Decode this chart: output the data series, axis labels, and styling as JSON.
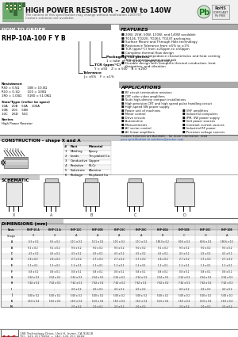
{
  "title": "HIGH POWER RESISTOR – 20W to 140W",
  "subtitle1": "The content of this specification may change without notification 12/07/07",
  "subtitle2": "Custom solutions are available.",
  "how_to_order_title": "HOW TO ORDER",
  "part_number": "RHP-10A-100 F Y B",
  "packaging_label": "Packaging (50 pieces)",
  "packaging_desc": "1 = tube  or  50 = tray (flanged type only)",
  "tcr_label": "TCR (ppm/°C)",
  "tcr_desc": "Y = ±50    Z = ± 500    N = ±250",
  "tol_label": "Tolerance",
  "tol_desc": "J = ±5%    F = ±1%",
  "res_label": "Resistance",
  "res_lines": [
    "R50 = 0.5Ω        10B = 10.0Ω",
    "R10 = 0.1Ω        100 = 100Ω",
    "1R0 = 1.00Ω      51K0 = 51.0KΩ"
  ],
  "size_label": "Size/Type (refer to spec)",
  "size_lines": [
    "10A    20B    50A    100A",
    "10B    20C    50B",
    "10C    26D    50C"
  ],
  "series_label": "Series",
  "series_desc": "High Power Resistor",
  "features_title": "FEATURES",
  "features": [
    "20W, 25W, 50W, 100W, and 140W available",
    "TO126, TO220, TO263, TO247 packaging",
    "Surface Mount and Through Hole technology",
    "Resistance Tolerance from ±5% to ±1%",
    "TCR (ppm/°C) from ±25ppm to ±50ppm",
    "Complete thermal flow design",
    "Non Inductive impedance characteristics and heat venting\n    through the insulated metal tab",
    "Durable design with complete thermal conduction, heat\n    dissipation, and vibration"
  ],
  "applications_title": "APPLICATIONS",
  "applications_col1": [
    "RF circuit termination resistors",
    "CRT color video amplifiers",
    "Suits high-density compact installations",
    "High precision CRT and high speed pulse handling circuit",
    "High speed SW power supply",
    "Power unit of machines",
    "Motor control",
    "Drive circuits",
    "Automotive",
    "Measurements",
    "AC sector control",
    "AC linear amplifiers"
  ],
  "applications_col2": [
    "VHF amplifiers",
    "Industrial computers",
    "IPM, SW power supply",
    "Volt power sources",
    "Constant current sources",
    "Industrial RF power",
    "Precision voltage sources"
  ],
  "custom_line1": "Custom Solutions are Available – for more information, send",
  "custom_line2": "your specification to solutions@aactec.com",
  "construction_title": "CONSTRUCTION – shape X and A",
  "construction_items": [
    [
      "1",
      "Molding",
      "Epoxy"
    ],
    [
      "2",
      "Leads",
      "Tin-plated Cu"
    ],
    [
      "3",
      "Conductive",
      "Copper"
    ],
    [
      "4",
      "Resistive",
      "Ni-Cr"
    ],
    [
      "5",
      "Substrate",
      "Alumina"
    ],
    [
      "6",
      "Package",
      "Ni-plated Cu"
    ]
  ],
  "schematic_title": "SCHEMATIC",
  "dimensions_title": "DIMENSIONS (mm)",
  "dim_col_headers": [
    "Resis",
    "RHP-10 A",
    "RHP-11 A",
    "RHP-12C",
    "RHP-20B",
    "RHP-25C",
    "RHP-26C",
    "RHP-40A",
    "RHP-50B",
    "RHP-10C",
    "RHP-10B"
  ],
  "dim_shape_row": [
    "Shape",
    "X",
    "X",
    "A",
    "A",
    "A",
    "A",
    "B",
    "C",
    "D",
    "A"
  ],
  "dim_rows": [
    [
      "A",
      "6.5 ± 0.2",
      "6.5 ± 0.2",
      "10.1 ± 0.2",
      "10.1 ± 0.2",
      "10.5 ± 0.2",
      "10.1 ± 0.2",
      "160.0 ± 0.2",
      "60.6 ± 0.2",
      "60.6 ± 0.2",
      "160.6 ± 0.2"
    ],
    [
      "B",
      "9.1 ± 0.2",
      "9.1 ± 0.2",
      "9.0 ± 0.2",
      "9.0 ± 0.2",
      "9.0 ± 0.2",
      "9.0 ± 0.2",
      "9.1 ± 0.2",
      "9.0 ± 0.2",
      "9.0 ± 0.2",
      "9.0 ± 0.2"
    ],
    [
      "C",
      "4.5 ± 0.2",
      "4.5 ± 0.2",
      "4.5 ± 0.2",
      "4.5 ± 0.2",
      "4.5 ± 0.2",
      "4.5 ± 0.2",
      "4.5 ± 0.2",
      "4.5 ± 0.2",
      "4.5 ± 0.2",
      "4.5 ± 0.2"
    ],
    [
      "D",
      "2.6 ± 0.2",
      "2.6 ± 0.2",
      "2.7 ± 0.2",
      "2.7 ± 0.2",
      "2.7 ± 0.2",
      "2.7 ± 0.2",
      "2.6 ± 0.2",
      "2.7 ± 0.2",
      "2.7 ± 0.2",
      "2.7 ± 0.2"
    ],
    [
      "E",
      "1.3 ± 0.1",
      "1.3 ± 0.1",
      "1.3 ± 0.1",
      "1.3 ± 0.1",
      "1.3 ± 0.1",
      "1.3 ± 0.1",
      "1.3 ± 0.1",
      "1.3 ± 0.1",
      "1.3 ± 0.1",
      "1.3 ± 0.1"
    ],
    [
      "F",
      "0.8 ± 0.1",
      "0.8 ± 0.1",
      "0.8 ± 0.1",
      "0.8 ± 0.1",
      "0.8 ± 0.1",
      "0.8 ± 0.1",
      "0.8 ± 0.1",
      "0.8 ± 0.1",
      "0.8 ± 0.1",
      "0.8 ± 0.1"
    ],
    [
      "G",
      "2.54 ± 0.2",
      "2.54 ± 0.2",
      "2.54 ± 0.2",
      "2.54 ± 0.2",
      "2.54 ± 0.2",
      "2.54 ± 0.2",
      "2.54 ± 0.2",
      "2.54 ± 0.2",
      "2.54 ± 0.2",
      "2.54 ± 0.2"
    ],
    [
      "H",
      "7.62 ± 0.2",
      "7.62 ± 0.2",
      "7.62 ± 0.2",
      "7.62 ± 0.2",
      "7.62 ± 0.2",
      "7.62 ± 0.2",
      "7.62 ± 0.2",
      "7.62 ± 0.2",
      "7.62 ± 0.2",
      "7.62 ± 0.2"
    ],
    [
      "I",
      "–",
      "–",
      "4.0 ± 0.2",
      "4.0 ± 0.2",
      "4.0 ± 0.2",
      "4.0 ± 0.2",
      "–",
      "4.0 ± 0.2",
      "4.0 ± 0.2",
      "4.0 ± 0.2"
    ],
    [
      "J",
      "5.08 ± 0.2",
      "5.08 ± 0.2",
      "5.08 ± 0.2",
      "5.08 ± 0.2",
      "5.08 ± 0.2",
      "5.08 ± 0.2",
      "5.08 ± 0.2",
      "5.08 ± 0.2",
      "5.08 ± 0.2",
      "5.08 ± 0.2"
    ],
    [
      "K",
      "16.0 ± 0.4",
      "16.0 ± 0.4",
      "16.0 ± 0.4",
      "16.0 ± 0.4",
      "16.0 ± 0.4",
      "16.0 ± 0.4",
      "16.0 ± 0.4",
      "16.0 ± 0.4",
      "16.0 ± 0.4",
      "16.0 ± 0.4"
    ],
    [
      "M",
      "–",
      "–",
      "2.0 ± 0.2",
      "2.0 ± 0.2",
      "2.0 ± 0.2",
      "2.0 ± 0.2",
      "–",
      "2.0 ± 0.2",
      "2.0 ± 0.2",
      "2.0 ± 0.2"
    ]
  ],
  "company_name": "AAC",
  "company_address": "188 Technology Drive, Unit H, Irvine, CA 92618",
  "company_tel": "TEL: 949-453-9898  •  FAX: 949-453-8888",
  "bg_color": "#ffffff",
  "gray_header": "#cccccc",
  "dark_header": "#555555",
  "green_color": "#5a8a5a",
  "section_title_bg": "#cccccc"
}
